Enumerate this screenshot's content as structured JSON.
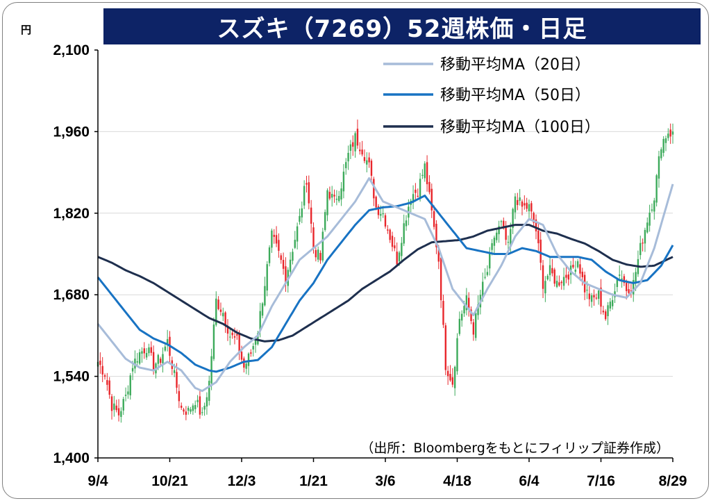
{
  "title": "スズキ（7269）52週株価・日足",
  "chart_data": {
    "type": "candlestick",
    "y_unit": "円",
    "ylim": [
      1400,
      2100
    ],
    "y_ticks": [
      "2,100",
      "1,960",
      "1,820",
      "1,680",
      "1,540",
      "1,400"
    ],
    "y_tick_values": [
      2100,
      1960,
      1820,
      1680,
      1540,
      1400
    ],
    "x_tick_labels": [
      "9/4",
      "10/21",
      "12/3",
      "1/21",
      "3/6",
      "4/18",
      "6/4",
      "7/16",
      "8/29"
    ],
    "x_tick_index": [
      0,
      31,
      62,
      93,
      124,
      155,
      186,
      217,
      248
    ],
    "legend": [
      {
        "name": "移動平均MA（20日）",
        "color": "#a7bcd9"
      },
      {
        "name": "移動平均MA（50日）",
        "color": "#1873c3"
      },
      {
        "name": "移動平均MA（100日）",
        "color": "#1e2f4e"
      }
    ],
    "up_color": "#3caa5a",
    "down_color": "#e8262b",
    "close_anchors": [
      [
        0,
        1565
      ],
      [
        3,
        1545
      ],
      [
        6,
        1490
      ],
      [
        9,
        1475
      ],
      [
        12,
        1505
      ],
      [
        15,
        1560
      ],
      [
        18,
        1580
      ],
      [
        21,
        1590
      ],
      [
        24,
        1560
      ],
      [
        27,
        1570
      ],
      [
        30,
        1600
      ],
      [
        33,
        1540
      ],
      [
        36,
        1485
      ],
      [
        39,
        1480
      ],
      [
        42,
        1500
      ],
      [
        45,
        1470
      ],
      [
        48,
        1530
      ],
      [
        51,
        1670
      ],
      [
        54,
        1650
      ],
      [
        57,
        1610
      ],
      [
        60,
        1600
      ],
      [
        63,
        1555
      ],
      [
        66,
        1580
      ],
      [
        69,
        1620
      ],
      [
        72,
        1700
      ],
      [
        75,
        1780
      ],
      [
        78,
        1750
      ],
      [
        81,
        1710
      ],
      [
        84,
        1760
      ],
      [
        87,
        1810
      ],
      [
        90,
        1880
      ],
      [
        93,
        1760
      ],
      [
        96,
        1740
      ],
      [
        99,
        1860
      ],
      [
        102,
        1840
      ],
      [
        105,
        1870
      ],
      [
        108,
        1920
      ],
      [
        111,
        1950
      ],
      [
        114,
        1930
      ],
      [
        117,
        1900
      ],
      [
        120,
        1830
      ],
      [
        123,
        1820
      ],
      [
        126,
        1780
      ],
      [
        129,
        1740
      ],
      [
        132,
        1800
      ],
      [
        135,
        1850
      ],
      [
        138,
        1860
      ],
      [
        141,
        1900
      ],
      [
        144,
        1820
      ],
      [
        147,
        1740
      ],
      [
        150,
        1560
      ],
      [
        153,
        1530
      ],
      [
        156,
        1640
      ],
      [
        159,
        1670
      ],
      [
        162,
        1620
      ],
      [
        165,
        1680
      ],
      [
        168,
        1720
      ],
      [
        171,
        1780
      ],
      [
        174,
        1800
      ],
      [
        177,
        1760
      ],
      [
        180,
        1850
      ],
      [
        183,
        1830
      ],
      [
        186,
        1830
      ],
      [
        189,
        1790
      ],
      [
        192,
        1700
      ],
      [
        195,
        1720
      ],
      [
        198,
        1700
      ],
      [
        201,
        1710
      ],
      [
        204,
        1720
      ],
      [
        207,
        1740
      ],
      [
        210,
        1690
      ],
      [
        213,
        1670
      ],
      [
        216,
        1680
      ],
      [
        219,
        1640
      ],
      [
        222,
        1680
      ],
      [
        225,
        1720
      ],
      [
        228,
        1690
      ],
      [
        231,
        1700
      ],
      [
        234,
        1760
      ],
      [
        237,
        1810
      ],
      [
        240,
        1850
      ],
      [
        243,
        1940
      ],
      [
        246,
        1960
      ],
      [
        248,
        1955
      ]
    ],
    "ma_anchors": {
      "ma20": [
        [
          0,
          1630
        ],
        [
          6,
          1600
        ],
        [
          12,
          1570
        ],
        [
          18,
          1555
        ],
        [
          24,
          1550
        ],
        [
          30,
          1565
        ],
        [
          36,
          1550
        ],
        [
          42,
          1520
        ],
        [
          45,
          1515
        ],
        [
          51,
          1530
        ],
        [
          57,
          1565
        ],
        [
          63,
          1590
        ],
        [
          69,
          1610
        ],
        [
          75,
          1660
        ],
        [
          81,
          1700
        ],
        [
          87,
          1740
        ],
        [
          93,
          1760
        ],
        [
          99,
          1780
        ],
        [
          105,
          1810
        ],
        [
          111,
          1840
        ],
        [
          114,
          1860
        ],
        [
          117,
          1880
        ],
        [
          120,
          1860
        ],
        [
          123,
          1840
        ],
        [
          129,
          1830
        ],
        [
          135,
          1820
        ],
        [
          141,
          1810
        ],
        [
          147,
          1760
        ],
        [
          153,
          1690
        ],
        [
          159,
          1660
        ],
        [
          162,
          1645
        ],
        [
          168,
          1690
        ],
        [
          174,
          1730
        ],
        [
          180,
          1780
        ],
        [
          186,
          1810
        ],
        [
          192,
          1800
        ],
        [
          198,
          1750
        ],
        [
          204,
          1720
        ],
        [
          210,
          1700
        ],
        [
          216,
          1690
        ],
        [
          222,
          1680
        ],
        [
          228,
          1675
        ],
        [
          234,
          1700
        ],
        [
          240,
          1760
        ],
        [
          248,
          1870
        ]
      ],
      "ma50": [
        [
          0,
          1710
        ],
        [
          6,
          1680
        ],
        [
          12,
          1650
        ],
        [
          18,
          1620
        ],
        [
          24,
          1605
        ],
        [
          30,
          1595
        ],
        [
          36,
          1580
        ],
        [
          42,
          1560
        ],
        [
          48,
          1550
        ],
        [
          51,
          1548
        ],
        [
          57,
          1555
        ],
        [
          63,
          1565
        ],
        [
          69,
          1568
        ],
        [
          75,
          1590
        ],
        [
          81,
          1630
        ],
        [
          87,
          1670
        ],
        [
          93,
          1700
        ],
        [
          99,
          1740
        ],
        [
          105,
          1770
        ],
        [
          111,
          1800
        ],
        [
          117,
          1825
        ],
        [
          123,
          1830
        ],
        [
          129,
          1832
        ],
        [
          135,
          1838
        ],
        [
          141,
          1850
        ],
        [
          147,
          1820
        ],
        [
          153,
          1790
        ],
        [
          159,
          1760
        ],
        [
          165,
          1755
        ],
        [
          171,
          1750
        ],
        [
          177,
          1750
        ],
        [
          183,
          1760
        ],
        [
          189,
          1755
        ],
        [
          195,
          1745
        ],
        [
          201,
          1745
        ],
        [
          207,
          1745
        ],
        [
          213,
          1740
        ],
        [
          219,
          1720
        ],
        [
          225,
          1705
        ],
        [
          231,
          1700
        ],
        [
          237,
          1705
        ],
        [
          243,
          1730
        ],
        [
          248,
          1765
        ]
      ],
      "ma100": [
        [
          0,
          1745
        ],
        [
          6,
          1735
        ],
        [
          12,
          1722
        ],
        [
          18,
          1712
        ],
        [
          24,
          1700
        ],
        [
          30,
          1685
        ],
        [
          36,
          1670
        ],
        [
          42,
          1655
        ],
        [
          48,
          1640
        ],
        [
          54,
          1630
        ],
        [
          60,
          1615
        ],
        [
          66,
          1605
        ],
        [
          72,
          1600
        ],
        [
          78,
          1602
        ],
        [
          84,
          1610
        ],
        [
          90,
          1625
        ],
        [
          96,
          1640
        ],
        [
          102,
          1655
        ],
        [
          108,
          1670
        ],
        [
          114,
          1690
        ],
        [
          120,
          1705
        ],
        [
          126,
          1720
        ],
        [
          132,
          1740
        ],
        [
          138,
          1758
        ],
        [
          144,
          1770
        ],
        [
          150,
          1772
        ],
        [
          156,
          1774
        ],
        [
          162,
          1780
        ],
        [
          168,
          1790
        ],
        [
          174,
          1795
        ],
        [
          180,
          1800
        ],
        [
          186,
          1800
        ],
        [
          192,
          1790
        ],
        [
          198,
          1785
        ],
        [
          204,
          1776
        ],
        [
          210,
          1768
        ],
        [
          216,
          1755
        ],
        [
          222,
          1740
        ],
        [
          228,
          1732
        ],
        [
          234,
          1728
        ],
        [
          240,
          1730
        ],
        [
          248,
          1745
        ]
      ]
    },
    "n_days": 249
  },
  "source": "（出所：Bloombergをもとにフィリップ証券作成）"
}
